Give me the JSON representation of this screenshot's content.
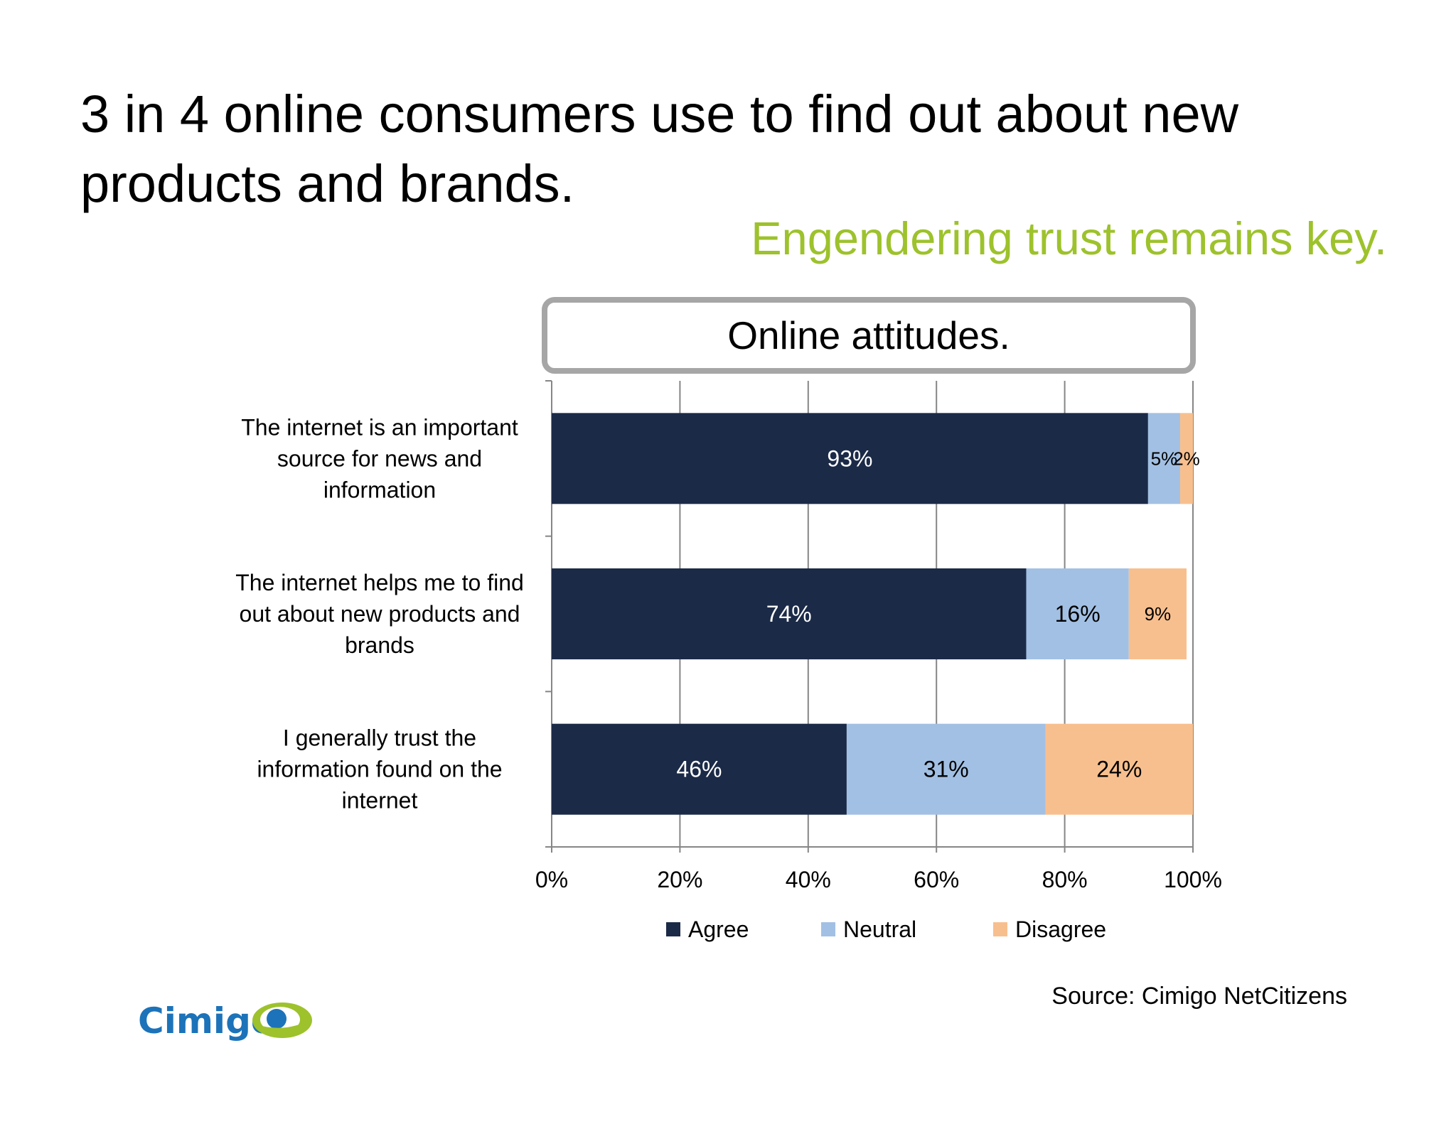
{
  "slide": {
    "headline_line1": "3 in 4 online consumers use to find out about new",
    "headline_line2": "products and brands.",
    "subheadline": "Engendering trust remains key.",
    "source": "Source: Cimigo NetCitizens",
    "logo_text": "Cimigo"
  },
  "colors": {
    "accent_green": "#9dc22c",
    "agree": "#1b2a47",
    "neutral": "#a2c0e3",
    "disagree": "#f8bf8e",
    "logo_blue": "#1c73b9",
    "logo_green": "#9dc22c"
  },
  "chart_data": {
    "type": "bar",
    "orientation": "horizontal",
    "stacked": true,
    "title": "Online attitudes.",
    "categories": [
      [
        "The internet is an important",
        "source for news and",
        "information"
      ],
      [
        "The internet helps me to find",
        "out about new products and",
        "brands"
      ],
      [
        "I generally trust the",
        "information found on the",
        "internet"
      ]
    ],
    "series": [
      {
        "name": "Agree",
        "values": [
          93,
          74,
          46
        ],
        "labels": [
          "93%",
          "74%",
          "46%"
        ]
      },
      {
        "name": "Neutral",
        "values": [
          5,
          16,
          31
        ],
        "labels": [
          "5%",
          "16%",
          "31%"
        ]
      },
      {
        "name": "Disagree",
        "values": [
          2,
          9,
          24
        ],
        "labels": [
          "2%",
          "9%",
          "24%"
        ]
      }
    ],
    "xlim": [
      0,
      100
    ],
    "xticks": [
      "0%",
      "20%",
      "40%",
      "60%",
      "80%",
      "100%"
    ],
    "grid": true,
    "legend": "bottom"
  }
}
